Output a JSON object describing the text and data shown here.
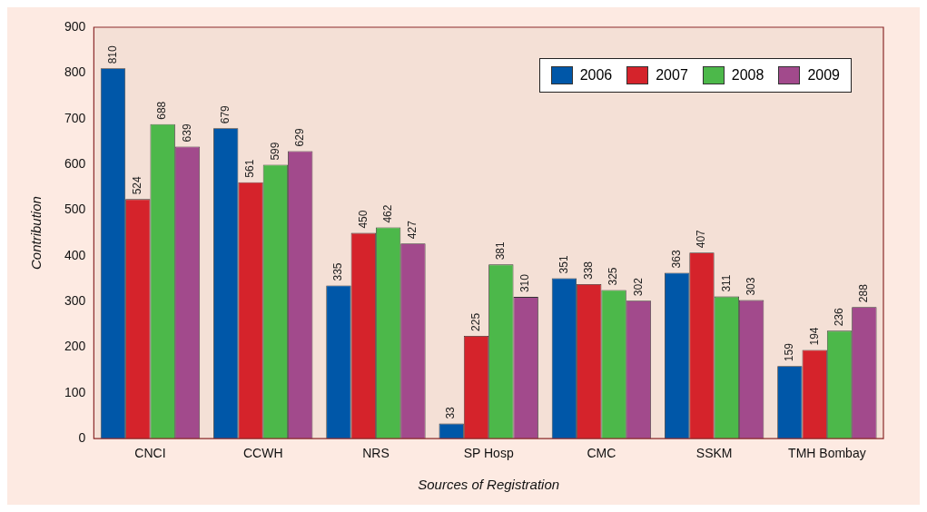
{
  "chart_data": {
    "type": "bar",
    "xlabel": "Sources of Registration",
    "ylabel": "Contribution",
    "categories": [
      "CNCI",
      "CCWH",
      "NRS",
      "SP Hosp",
      "CMC",
      "SSKM",
      "TMH Bombay"
    ],
    "series": [
      {
        "name": "2006",
        "color": "#0057a8",
        "values": [
          810,
          679,
          335,
          33,
          351,
          363,
          159
        ]
      },
      {
        "name": "2007",
        "color": "#d5232b",
        "values": [
          524,
          561,
          450,
          225,
          338,
          407,
          194
        ]
      },
      {
        "name": "2008",
        "color": "#4cb84a",
        "values": [
          688,
          599,
          462,
          381,
          325,
          311,
          236
        ]
      },
      {
        "name": "2009",
        "color": "#a24a8c",
        "values": [
          639,
          629,
          427,
          310,
          302,
          303,
          288
        ]
      }
    ],
    "ylim": [
      0,
      900
    ],
    "yticks": [
      0,
      100,
      200,
      300,
      400,
      500,
      600,
      700,
      800,
      900
    ],
    "grid": false,
    "legend": "top right",
    "data_labels": true
  }
}
